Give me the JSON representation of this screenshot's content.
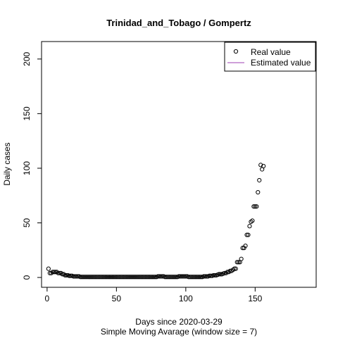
{
  "chart_data": {
    "type": "scatter",
    "title": "Trinidad_and_Tobago / Gompertz",
    "xlabel": "Days since 2020-03-29",
    "subtitle": "Simple Moving Avarage (window size = 7)",
    "ylabel": "Daily cases",
    "xlim": [
      -4,
      194
    ],
    "ylim": [
      -9,
      216
    ],
    "x_ticks": [
      0,
      50,
      100,
      150
    ],
    "y_ticks": [
      0,
      50,
      100,
      150,
      200
    ],
    "legend": {
      "position": "top-right",
      "entries": [
        {
          "label": "Real value",
          "symbol": "open-circle",
          "color": "#000000"
        },
        {
          "label": "Estimated value",
          "symbol": "line",
          "color": "#9E3FB3"
        }
      ]
    },
    "series": [
      {
        "name": "Real value",
        "x": [
          1,
          2,
          3,
          4,
          5,
          6,
          7,
          8,
          9,
          10,
          11,
          12,
          13,
          14,
          15,
          16,
          17,
          18,
          19,
          20,
          21,
          22,
          23,
          24,
          25,
          26,
          27,
          28,
          29,
          30,
          31,
          32,
          33,
          34,
          35,
          36,
          37,
          38,
          39,
          40,
          41,
          42,
          43,
          44,
          45,
          46,
          47,
          48,
          49,
          50,
          51,
          52,
          53,
          54,
          55,
          56,
          57,
          58,
          59,
          60,
          61,
          62,
          63,
          64,
          65,
          66,
          67,
          68,
          69,
          70,
          71,
          72,
          73,
          74,
          75,
          76,
          77,
          78,
          79,
          80,
          81,
          82,
          83,
          84,
          85,
          86,
          87,
          88,
          89,
          90,
          91,
          92,
          93,
          94,
          95,
          96,
          97,
          98,
          99,
          100,
          101,
          102,
          103,
          104,
          105,
          106,
          107,
          108,
          109,
          110,
          111,
          112,
          113,
          114,
          115,
          116,
          117,
          118,
          119,
          120,
          121,
          122,
          123,
          124,
          125,
          126,
          127,
          128,
          129,
          130,
          131,
          132,
          133,
          134,
          135,
          136,
          137,
          138,
          139,
          140,
          141,
          142,
          143,
          144,
          145,
          146,
          147,
          148,
          149,
          150,
          151,
          152,
          153,
          154,
          155,
          156
        ],
        "y": [
          8,
          4,
          4,
          5,
          5,
          5,
          5,
          4,
          4,
          4,
          3,
          3,
          2,
          2,
          2,
          1.5,
          1.5,
          1.5,
          1,
          1,
          1,
          1,
          1,
          0.5,
          0.5,
          0.5,
          0.5,
          0.5,
          0.5,
          0.5,
          0.5,
          0.5,
          0.5,
          0.5,
          0.5,
          0.5,
          0.5,
          0.5,
          0.5,
          0.5,
          0.5,
          0.5,
          0.5,
          0.5,
          0.5,
          0.5,
          0.5,
          0.5,
          0.5,
          0.5,
          0.5,
          0.5,
          0.5,
          0.5,
          0.5,
          0.5,
          0.5,
          0.5,
          0.5,
          0.5,
          0.5,
          0.5,
          0.5,
          0.5,
          0.5,
          0.5,
          0.5,
          0.5,
          0.5,
          0.5,
          0.5,
          0.5,
          0.5,
          0.5,
          0.5,
          0.5,
          0.5,
          0.5,
          0.5,
          1,
          1,
          1,
          1,
          1,
          0.5,
          0.5,
          0.5,
          0.5,
          0.5,
          0.5,
          0.5,
          0.5,
          0.5,
          0.5,
          1,
          1,
          1,
          1,
          1,
          1,
          1,
          0.5,
          0.5,
          0.5,
          0.5,
          0.5,
          0.5,
          0.5,
          0.5,
          0.5,
          0.5,
          0.5,
          1,
          1,
          1,
          1,
          1.5,
          1.5,
          1.5,
          2,
          2,
          2,
          2.5,
          3,
          3,
          3,
          3.5,
          4,
          4,
          5,
          5,
          6,
          6,
          7,
          8,
          8,
          14,
          14,
          14,
          17,
          27,
          27,
          29,
          39,
          39,
          47,
          51,
          52,
          65,
          65,
          65,
          78,
          89,
          103,
          99,
          102
        ]
      },
      {
        "name": "Estimated value",
        "x": [],
        "y": []
      }
    ]
  }
}
